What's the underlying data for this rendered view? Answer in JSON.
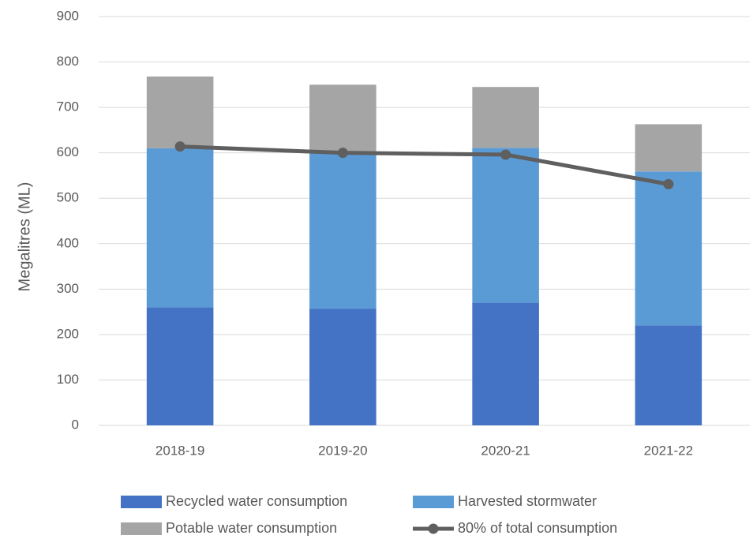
{
  "chart_data": {
    "type": "bar",
    "y_label": "Megalitres (ML)",
    "categories": [
      "2018-19",
      "2019-20",
      "2020-21",
      "2021-22"
    ],
    "series": [
      {
        "name": "Recycled water consumption",
        "color": "#4472c4",
        "values": [
          260,
          257,
          270,
          220
        ]
      },
      {
        "name": "Harvested stormwater",
        "color": "#5b9bd5",
        "values": [
          350,
          343,
          341,
          339
        ]
      },
      {
        "name": "Potable water consumption",
        "color": "#a5a5a5",
        "values": [
          158,
          150,
          134,
          104
        ]
      },
      {
        "name": "80% of total consumption",
        "type": "line",
        "color": "#5f5f5f",
        "values": [
          614,
          600,
          596,
          531
        ]
      }
    ],
    "stacked": true,
    "ylim": [
      0,
      900
    ],
    "yticks": [
      0,
      100,
      200,
      300,
      400,
      500,
      600,
      700,
      800,
      900
    ],
    "grid": true
  }
}
